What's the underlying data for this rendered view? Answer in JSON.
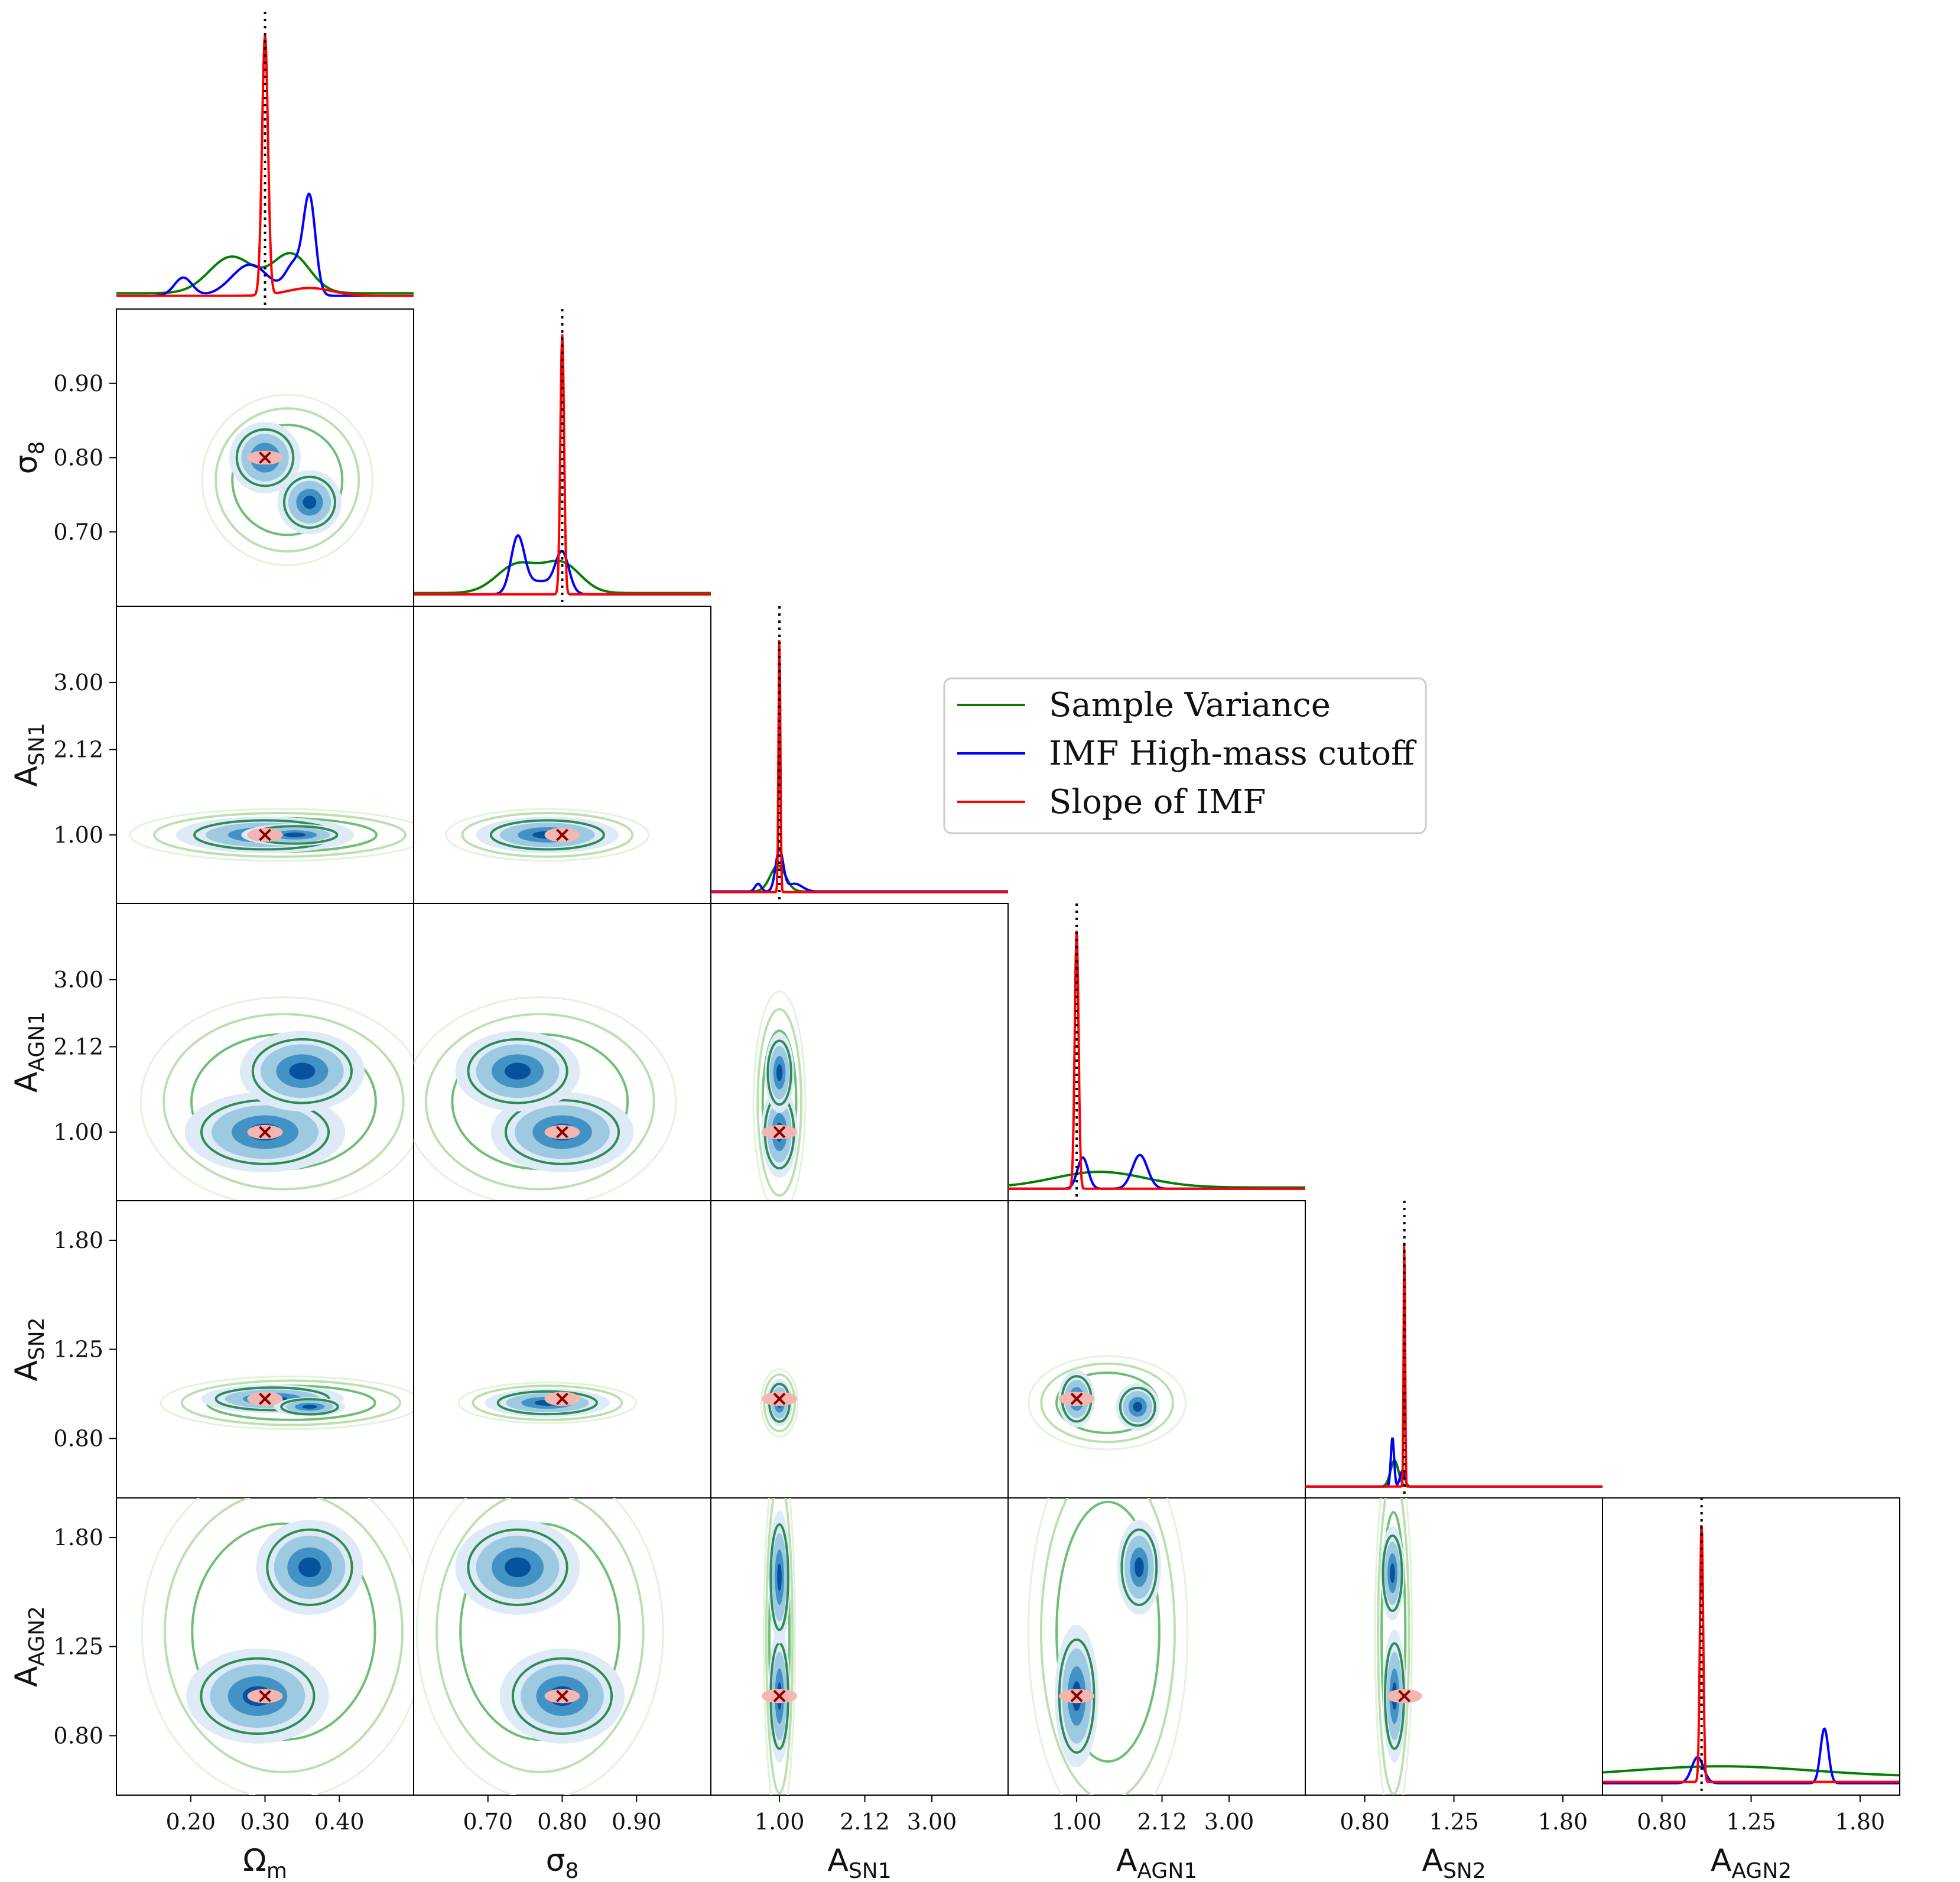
{
  "chart_data": {
    "type": "corner",
    "legend": {
      "entries": [
        {
          "label": "Sample Variance",
          "color": "#008000"
        },
        {
          "label": "IMF High-mass cutoff",
          "color": "#0000ff"
        },
        {
          "label": "Slope of IMF",
          "color": "#ff0000"
        }
      ],
      "placement": "upper-middle"
    },
    "colors": {
      "sample_variance": "#008000",
      "imf_high_mass_cutoff": "#0000ff",
      "slope_of_imf": "#ff0000",
      "filled_contours": [
        "#deebf7",
        "#9ecae1",
        "#4292c6",
        "#08519c"
      ],
      "truth_line": "#000000"
    },
    "parameters": [
      {
        "name": "Omega_m",
        "symbol": "Ω",
        "sub": "m",
        "truth": 0.3,
        "range": [
          0.1,
          0.5
        ],
        "ticks": [
          {
            "v": 0.2,
            "t": "0.20"
          },
          {
            "v": 0.3,
            "t": "0.30"
          },
          {
            "v": 0.4,
            "t": "0.40"
          }
        ]
      },
      {
        "name": "sigma_8",
        "symbol": "σ",
        "sub": "8",
        "truth": 0.8,
        "range": [
          0.6,
          1.0
        ],
        "ticks": [
          {
            "v": 0.7,
            "t": "0.70"
          },
          {
            "v": 0.8,
            "t": "0.80"
          },
          {
            "v": 0.9,
            "t": "0.90"
          }
        ]
      },
      {
        "name": "A_SN1",
        "symbol": "A",
        "sub": "SN1",
        "truth": 1.0,
        "range": [
          0.1,
          4.0
        ],
        "ticks": [
          {
            "v": 1.0,
            "t": "1.00"
          },
          {
            "v": 2.12,
            "t": "2.12"
          },
          {
            "v": 3.0,
            "t": "3.00"
          }
        ]
      },
      {
        "name": "A_AGN1",
        "symbol": "A",
        "sub": "AGN1",
        "truth": 1.0,
        "range": [
          0.1,
          4.0
        ],
        "ticks": [
          {
            "v": 1.0,
            "t": "1.00"
          },
          {
            "v": 2.12,
            "t": "2.12"
          },
          {
            "v": 3.0,
            "t": "3.00"
          }
        ]
      },
      {
        "name": "A_SN2",
        "symbol": "A",
        "sub": "SN2",
        "truth": 1.0,
        "range": [
          0.5,
          2.0
        ],
        "ticks": [
          {
            "v": 0.8,
            "t": "0.80"
          },
          {
            "v": 1.25,
            "t": "1.25"
          },
          {
            "v": 1.8,
            "t": "1.80"
          }
        ]
      },
      {
        "name": "A_AGN2",
        "symbol": "A",
        "sub": "AGN2",
        "truth": 1.0,
        "range": [
          0.5,
          2.0
        ],
        "ticks": [
          {
            "v": 0.8,
            "t": "0.80"
          },
          {
            "v": 1.25,
            "t": "1.25"
          },
          {
            "v": 1.8,
            "t": "1.80"
          }
        ]
      }
    ],
    "marginals": [
      {
        "param": "Omega_m",
        "series": [
          {
            "key": "sample_variance",
            "peaks": [
              {
                "x": 0.255,
                "h": 0.14,
                "w": 0.03
              },
              {
                "x": 0.335,
                "h": 0.15,
                "w": 0.025
              }
            ],
            "base": 0.02
          },
          {
            "key": "imf_high_mass_cutoff",
            "peaks": [
              {
                "x": 0.19,
                "h": 0.07,
                "w": 0.012
              },
              {
                "x": 0.28,
                "h": 0.12,
                "w": 0.025
              },
              {
                "x": 0.34,
                "h": 0.12,
                "w": 0.012
              },
              {
                "x": 0.36,
                "h": 0.36,
                "w": 0.008
              }
            ],
            "base": 0.01
          },
          {
            "key": "slope_of_imf",
            "peaks": [
              {
                "x": 0.3,
                "h": 1.0,
                "w": 0.004
              },
              {
                "x": 0.36,
                "h": 0.03,
                "w": 0.03
              }
            ],
            "base": 0.01
          }
        ]
      },
      {
        "param": "sigma_8",
        "series": [
          {
            "key": "sample_variance",
            "peaks": [
              {
                "x": 0.74,
                "h": 0.11,
                "w": 0.028
              },
              {
                "x": 0.8,
                "h": 0.11,
                "w": 0.025
              }
            ],
            "base": 0.01
          },
          {
            "key": "imf_high_mass_cutoff",
            "peaks": [
              {
                "x": 0.74,
                "h": 0.21,
                "w": 0.009
              },
              {
                "x": 0.8,
                "h": 0.15,
                "w": 0.009
              },
              {
                "x": 0.77,
                "h": 0.05,
                "w": 0.02
              }
            ],
            "base": 0.005
          },
          {
            "key": "slope_of_imf",
            "peaks": [
              {
                "x": 0.8,
                "h": 1.0,
                "w": 0.0025
              }
            ],
            "base": 0.005
          }
        ]
      },
      {
        "param": "A_SN1",
        "series": [
          {
            "key": "sample_variance",
            "peaks": [
              {
                "x": 0.98,
                "h": 0.1,
                "w": 0.1
              }
            ],
            "base": 0.005
          },
          {
            "key": "imf_high_mass_cutoff",
            "peaks": [
              {
                "x": 0.72,
                "h": 0.03,
                "w": 0.04
              },
              {
                "x": 1.0,
                "h": 0.16,
                "w": 0.05
              },
              {
                "x": 1.2,
                "h": 0.03,
                "w": 0.1
              }
            ],
            "base": 0.005
          },
          {
            "key": "slope_of_imf",
            "peaks": [
              {
                "x": 1.0,
                "h": 1.0,
                "w": 0.012
              }
            ],
            "base": 0.003
          }
        ]
      },
      {
        "param": "A_AGN1",
        "series": [
          {
            "key": "sample_variance",
            "peaks": [
              {
                "x": 1.3,
                "h": 0.06,
                "w": 0.6
              }
            ],
            "base": 0.01
          },
          {
            "key": "imf_high_mass_cutoff",
            "peaks": [
              {
                "x": 1.08,
                "h": 0.12,
                "w": 0.07
              },
              {
                "x": 1.83,
                "h": 0.13,
                "w": 0.1
              }
            ],
            "base": 0.005
          },
          {
            "key": "slope_of_imf",
            "peaks": [
              {
                "x": 1.0,
                "h": 1.0,
                "w": 0.025
              }
            ],
            "base": 0.005
          }
        ]
      },
      {
        "param": "A_SN2",
        "series": [
          {
            "key": "sample_variance",
            "peaks": [
              {
                "x": 0.95,
                "h": 0.1,
                "w": 0.02
              }
            ],
            "base": 0.003
          },
          {
            "key": "imf_high_mass_cutoff",
            "peaks": [
              {
                "x": 0.94,
                "h": 0.19,
                "w": 0.008
              },
              {
                "x": 0.99,
                "h": 0.06,
                "w": 0.012
              }
            ],
            "base": 0.003
          },
          {
            "key": "slope_of_imf",
            "peaks": [
              {
                "x": 1.0,
                "h": 1.0,
                "w": 0.0035
              }
            ],
            "base": 0.003
          }
        ]
      },
      {
        "param": "A_AGN2",
        "series": [
          {
            "key": "sample_variance",
            "peaks": [
              {
                "x": 1.1,
                "h": 0.04,
                "w": 0.45
              }
            ],
            "base": 0.03
          },
          {
            "key": "imf_high_mass_cutoff",
            "peaks": [
              {
                "x": 0.98,
                "h": 0.1,
                "w": 0.03
              },
              {
                "x": 1.62,
                "h": 0.21,
                "w": 0.02
              }
            ],
            "base": 0.005
          },
          {
            "key": "slope_of_imf",
            "peaks": [
              {
                "x": 1.0,
                "h": 1.0,
                "w": 0.008
              }
            ],
            "base": 0.01
          }
        ]
      }
    ],
    "joint_modes": [
      {
        "row": 1,
        "col": 0,
        "modes": [
          {
            "x": 0.3,
            "y": 0.8,
            "sx": 0.02,
            "sy": 0.02
          },
          {
            "x": 0.36,
            "y": 0.74,
            "sx": 0.018,
            "sy": 0.018
          }
        ]
      },
      {
        "row": 2,
        "col": 0,
        "modes": [
          {
            "x": 0.3,
            "y": 1.0,
            "sx": 0.05,
            "sy": 0.1
          },
          {
            "x": 0.34,
            "y": 1.0,
            "sx": 0.03,
            "sy": 0.06
          }
        ]
      },
      {
        "row": 2,
        "col": 1,
        "modes": [
          {
            "x": 0.78,
            "y": 1.0,
            "sx": 0.04,
            "sy": 0.1
          }
        ]
      },
      {
        "row": 3,
        "col": 0,
        "modes": [
          {
            "x": 0.3,
            "y": 1.0,
            "sx": 0.045,
            "sy": 0.22
          },
          {
            "x": 0.35,
            "y": 1.8,
            "sx": 0.035,
            "sy": 0.22
          }
        ]
      },
      {
        "row": 3,
        "col": 1,
        "modes": [
          {
            "x": 0.8,
            "y": 1.0,
            "sx": 0.04,
            "sy": 0.22
          },
          {
            "x": 0.74,
            "y": 1.8,
            "sx": 0.035,
            "sy": 0.22
          }
        ]
      },
      {
        "row": 3,
        "col": 2,
        "modes": [
          {
            "x": 1.0,
            "y": 1.0,
            "sx": 0.1,
            "sy": 0.25
          },
          {
            "x": 1.0,
            "y": 1.78,
            "sx": 0.08,
            "sy": 0.22
          }
        ]
      },
      {
        "row": 4,
        "col": 0,
        "modes": [
          {
            "x": 0.31,
            "y": 1.0,
            "sx": 0.04,
            "sy": 0.03
          },
          {
            "x": 0.36,
            "y": 0.96,
            "sx": 0.02,
            "sy": 0.02
          }
        ]
      },
      {
        "row": 4,
        "col": 1,
        "modes": [
          {
            "x": 0.78,
            "y": 0.98,
            "sx": 0.035,
            "sy": 0.03
          }
        ]
      },
      {
        "row": 4,
        "col": 2,
        "modes": [
          {
            "x": 1.0,
            "y": 0.98,
            "sx": 0.07,
            "sy": 0.05
          }
        ]
      },
      {
        "row": 4,
        "col": 3,
        "modes": [
          {
            "x": 1.0,
            "y": 1.0,
            "sx": 0.1,
            "sy": 0.06
          },
          {
            "x": 1.8,
            "y": 0.96,
            "sx": 0.12,
            "sy": 0.05
          }
        ]
      },
      {
        "row": 5,
        "col": 0,
        "modes": [
          {
            "x": 0.29,
            "y": 1.0,
            "sx": 0.04,
            "sy": 0.1
          },
          {
            "x": 0.36,
            "y": 1.65,
            "sx": 0.03,
            "sy": 0.1
          }
        ]
      },
      {
        "row": 5,
        "col": 1,
        "modes": [
          {
            "x": 0.8,
            "y": 1.0,
            "sx": 0.035,
            "sy": 0.1
          },
          {
            "x": 0.74,
            "y": 1.65,
            "sx": 0.035,
            "sy": 0.1
          }
        ]
      },
      {
        "row": 5,
        "col": 2,
        "modes": [
          {
            "x": 1.0,
            "y": 1.0,
            "sx": 0.06,
            "sy": 0.14
          },
          {
            "x": 1.0,
            "y": 1.6,
            "sx": 0.06,
            "sy": 0.14
          }
        ]
      },
      {
        "row": 5,
        "col": 3,
        "modes": [
          {
            "x": 1.0,
            "y": 1.0,
            "sx": 0.12,
            "sy": 0.15
          },
          {
            "x": 1.82,
            "y": 1.65,
            "sx": 0.12,
            "sy": 0.1
          }
        ]
      },
      {
        "row": 5,
        "col": 4,
        "modes": [
          {
            "x": 0.95,
            "y": 1.0,
            "sx": 0.025,
            "sy": 0.14
          },
          {
            "x": 0.94,
            "y": 1.62,
            "sx": 0.025,
            "sy": 0.1
          }
        ]
      }
    ]
  }
}
